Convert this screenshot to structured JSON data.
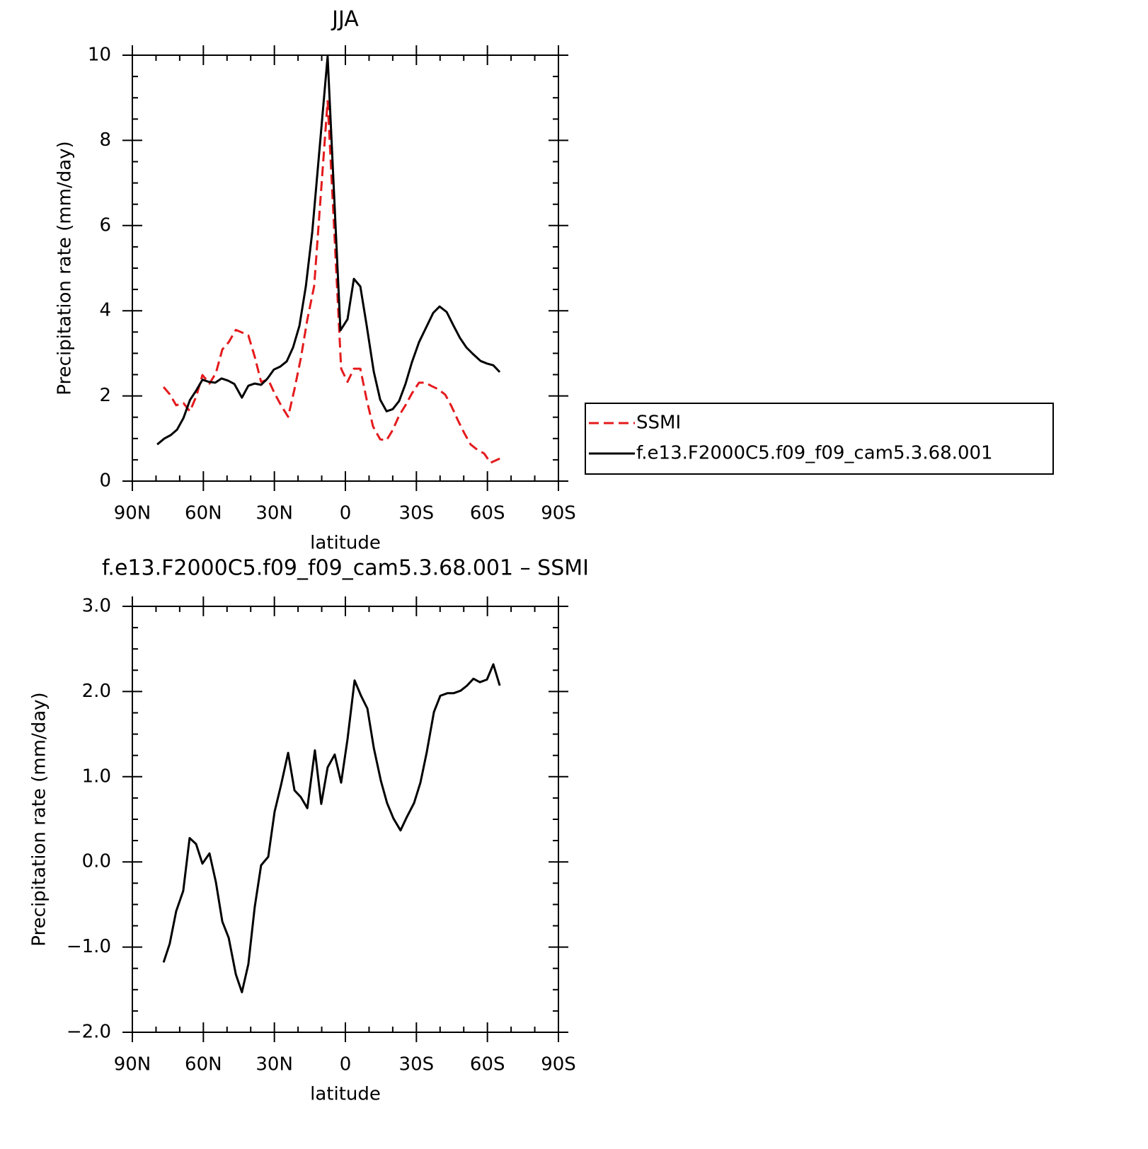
{
  "chart_data": [
    {
      "type": "line",
      "title": "JJA",
      "xlabel": "latitude",
      "ylabel": "Precipitation rate (mm/day)",
      "xlim": [
        90,
        -90
      ],
      "xticks": [
        {
          "value": 90,
          "label": "90N"
        },
        {
          "value": 60,
          "label": "60N"
        },
        {
          "value": 30,
          "label": "30N"
        },
        {
          "value": 0,
          "label": "0"
        },
        {
          "value": -30,
          "label": "30S"
        },
        {
          "value": -60,
          "label": "60S"
        },
        {
          "value": -90,
          "label": "90S"
        }
      ],
      "ylim": [
        0,
        10
      ],
      "yticks": [
        0,
        2,
        4,
        6,
        8,
        10
      ],
      "legend": "right",
      "series": [
        {
          "name": "SSMI",
          "color": "#e41a1c",
          "linestyle": "dashed",
          "x": [
            76.8,
            74.2,
            71.5,
            68.4,
            65.7,
            63.0,
            60.4,
            57.4,
            54.7,
            52.0,
            49.3,
            46.3,
            43.7,
            41.0,
            38.3,
            35.6,
            32.6,
            29.9,
            27.2,
            24.2,
            21.5,
            18.8,
            16.1,
            13.2,
            10.5,
            7.5,
            4.8,
            1.8,
            -0.9,
            -3.6,
            -6.3,
            -9.0,
            -11.7,
            -14.7,
            -17.4,
            -20.0,
            -22.7,
            -25.4,
            -28.1,
            -31.1,
            -33.8,
            -36.5,
            -39.2,
            -42.2,
            -44.8,
            -47.5,
            -50.2,
            -52.9,
            -55.9,
            -58.6,
            -61.3,
            -65.2
          ],
          "values": [
            2.21,
            2.04,
            1.78,
            1.83,
            1.64,
            1.99,
            2.49,
            2.29,
            2.54,
            3.09,
            3.26,
            3.55,
            3.49,
            3.42,
            2.92,
            2.33,
            2.38,
            2.06,
            1.78,
            1.51,
            2.16,
            2.89,
            3.79,
            4.58,
            6.64,
            8.92,
            6.0,
            2.64,
            2.33,
            2.64,
            2.64,
            1.91,
            1.28,
            0.98,
            0.96,
            1.2,
            1.54,
            1.78,
            2.06,
            2.31,
            2.31,
            2.23,
            2.16,
            2.03,
            1.76,
            1.43,
            1.13,
            0.86,
            0.73,
            0.65,
            0.43,
            0.53
          ]
        },
        {
          "name": "f.e13.F2000C5.f09_f09_cam5.3.68.001",
          "color": "#000000",
          "linestyle": "solid",
          "x": [
            79.5,
            76.5,
            73.8,
            71.1,
            68.4,
            65.7,
            63.0,
            60.4,
            57.7,
            55.0,
            52.3,
            49.6,
            46.9,
            43.7,
            41.0,
            38.3,
            35.6,
            32.9,
            30.2,
            27.5,
            24.8,
            22.1,
            19.4,
            16.7,
            14.0,
            10.2,
            7.5,
            2.1,
            -0.9,
            -3.6,
            -6.3,
            -9.0,
            -12.0,
            -14.7,
            -17.4,
            -20.0,
            -22.7,
            -25.4,
            -28.1,
            -31.1,
            -33.8,
            -37.1,
            -39.8,
            -42.8,
            -45.7,
            -48.4,
            -51.1,
            -53.8,
            -57.1,
            -59.8,
            -62.5,
            -65.2
          ],
          "values": [
            0.86,
            1.0,
            1.08,
            1.21,
            1.48,
            1.9,
            2.13,
            2.38,
            2.33,
            2.31,
            2.41,
            2.36,
            2.28,
            1.96,
            2.24,
            2.29,
            2.26,
            2.41,
            2.62,
            2.69,
            2.81,
            3.14,
            3.65,
            4.57,
            5.85,
            8.26,
            9.97,
            3.54,
            3.8,
            4.75,
            4.57,
            3.65,
            2.57,
            1.91,
            1.64,
            1.69,
            1.88,
            2.28,
            2.79,
            3.26,
            3.57,
            3.95,
            4.1,
            3.97,
            3.65,
            3.36,
            3.14,
            2.99,
            2.82,
            2.76,
            2.72,
            2.56
          ]
        }
      ]
    },
    {
      "type": "line",
      "title": "f.e13.F2000C5.f09_f09_cam5.3.68.001 – SSMI",
      "xlabel": "latitude",
      "ylabel": "Precipitation rate (mm/day)",
      "xlim": [
        90,
        -90
      ],
      "xticks": [
        {
          "value": 90,
          "label": "90N"
        },
        {
          "value": 60,
          "label": "60N"
        },
        {
          "value": 30,
          "label": "30N"
        },
        {
          "value": 0,
          "label": "0"
        },
        {
          "value": -30,
          "label": "30S"
        },
        {
          "value": -60,
          "label": "60S"
        },
        {
          "value": -90,
          "label": "90S"
        }
      ],
      "ylim": [
        -2,
        3
      ],
      "yticks": [
        {
          "value": -2,
          "label": "−2.0"
        },
        {
          "value": -1,
          "label": "−1.0"
        },
        {
          "value": 0,
          "label": "0.0"
        },
        {
          "value": 1,
          "label": "1.0"
        },
        {
          "value": 2,
          "label": "2.0"
        },
        {
          "value": 3,
          "label": "3.0"
        }
      ],
      "series": [
        {
          "color": "#000000",
          "linestyle": "solid",
          "x": [
            76.8,
            74.2,
            71.5,
            68.5,
            65.8,
            63.1,
            60.4,
            57.4,
            54.7,
            52.0,
            49.3,
            46.3,
            43.7,
            41.0,
            38.3,
            35.6,
            32.6,
            29.9,
            27.2,
            24.2,
            21.5,
            18.8,
            16.1,
            12.9,
            10.2,
            7.5,
            4.5,
            1.8,
            -0.9,
            -3.9,
            -6.6,
            -9.3,
            -12.0,
            -15.0,
            -17.6,
            -20.3,
            -23.3,
            -26.0,
            -29.0,
            -31.7,
            -34.4,
            -37.4,
            -40.1,
            -43.1,
            -45.7,
            -48.7,
            -51.4,
            -54.1,
            -56.8,
            -59.8,
            -62.5,
            -65.2
          ],
          "values": [
            -1.18,
            -0.96,
            -0.58,
            -0.34,
            0.28,
            0.21,
            -0.02,
            0.1,
            -0.24,
            -0.7,
            -0.89,
            -1.32,
            -1.53,
            -1.2,
            -0.53,
            -0.04,
            0.06,
            0.59,
            0.9,
            1.28,
            0.84,
            0.76,
            0.63,
            1.31,
            0.68,
            1.11,
            1.26,
            0.93,
            1.44,
            2.13,
            1.95,
            1.8,
            1.34,
            0.95,
            0.69,
            0.51,
            0.37,
            0.53,
            0.69,
            0.93,
            1.29,
            1.76,
            1.95,
            1.98,
            1.98,
            2.01,
            2.07,
            2.15,
            2.11,
            2.14,
            2.32,
            2.07
          ]
        }
      ]
    }
  ]
}
